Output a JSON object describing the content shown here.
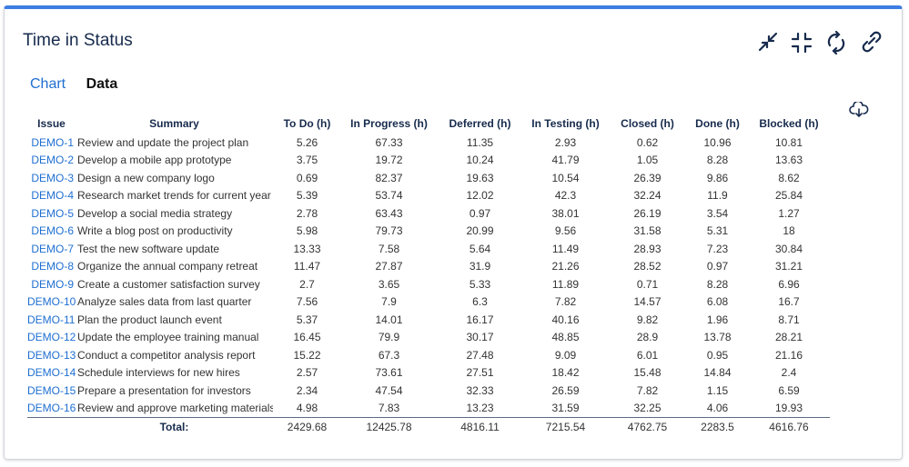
{
  "header": {
    "title": "Time in Status"
  },
  "tabs": [
    "Chart",
    "Data"
  ],
  "table": {
    "columns": [
      "Issue",
      "Summary",
      "To Do (h)",
      "In Progress (h)",
      "Deferred (h)",
      "In Testing (h)",
      "Closed (h)",
      "Done (h)",
      "Blocked (h)"
    ],
    "rows": [
      [
        "DEMO-1",
        "Review and update the project plan",
        "5.26",
        "67.33",
        "11.35",
        "2.93",
        "0.62",
        "10.96",
        "10.81"
      ],
      [
        "DEMO-2",
        "Develop a mobile app prototype",
        "3.75",
        "19.72",
        "10.24",
        "41.79",
        "1.05",
        "8.28",
        "13.63"
      ],
      [
        "DEMO-3",
        "Design a new company logo",
        "0.69",
        "82.37",
        "19.63",
        "10.54",
        "26.39",
        "9.86",
        "8.62"
      ],
      [
        "DEMO-4",
        "Research market trends for current year",
        "5.39",
        "53.74",
        "12.02",
        "42.3",
        "32.24",
        "11.9",
        "25.84"
      ],
      [
        "DEMO-5",
        "Develop a social media strategy",
        "2.78",
        "63.43",
        "0.97",
        "38.01",
        "26.19",
        "3.54",
        "1.27"
      ],
      [
        "DEMO-6",
        "Write a blog post on productivity",
        "5.98",
        "79.73",
        "20.99",
        "9.56",
        "31.58",
        "5.31",
        "18"
      ],
      [
        "DEMO-7",
        "Test the new software update",
        "13.33",
        "7.58",
        "5.64",
        "11.49",
        "28.93",
        "7.23",
        "30.84"
      ],
      [
        "DEMO-8",
        "Organize the annual company retreat",
        "11.47",
        "27.87",
        "31.9",
        "21.26",
        "28.52",
        "0.97",
        "31.21"
      ],
      [
        "DEMO-9",
        "Create a customer satisfaction survey",
        "2.7",
        "3.65",
        "5.33",
        "11.89",
        "0.71",
        "8.28",
        "6.96"
      ],
      [
        "DEMO-10",
        "Analyze sales data from last quarter",
        "7.56",
        "7.9",
        "6.3",
        "7.82",
        "14.57",
        "6.08",
        "16.7"
      ],
      [
        "DEMO-11",
        "Plan the product launch event",
        "5.37",
        "14.01",
        "16.17",
        "40.16",
        "9.82",
        "1.96",
        "8.71"
      ],
      [
        "DEMO-12",
        "Update the employee training manual",
        "16.45",
        "79.9",
        "30.17",
        "48.85",
        "28.9",
        "13.78",
        "28.21"
      ],
      [
        "DEMO-13",
        "Conduct a competitor analysis report",
        "15.22",
        "67.3",
        "27.48",
        "9.09",
        "6.01",
        "0.95",
        "21.16"
      ],
      [
        "DEMO-14",
        "Schedule interviews for new hires",
        "2.57",
        "73.61",
        "27.51",
        "18.42",
        "15.48",
        "14.84",
        "2.4"
      ],
      [
        "DEMO-15",
        "Prepare a presentation for investors",
        "2.34",
        "47.54",
        "32.33",
        "26.59",
        "7.82",
        "1.15",
        "6.59"
      ],
      [
        "DEMO-16",
        "Review and approve marketing materials",
        "4.98",
        "7.83",
        "13.23",
        "31.59",
        "32.25",
        "4.06",
        "19.93"
      ]
    ],
    "total": {
      "label": "Total:",
      "values": [
        "2429.68",
        "12425.78",
        "4816.11",
        "7215.54",
        "4762.75",
        "2283.5",
        "4616.76"
      ]
    }
  }
}
